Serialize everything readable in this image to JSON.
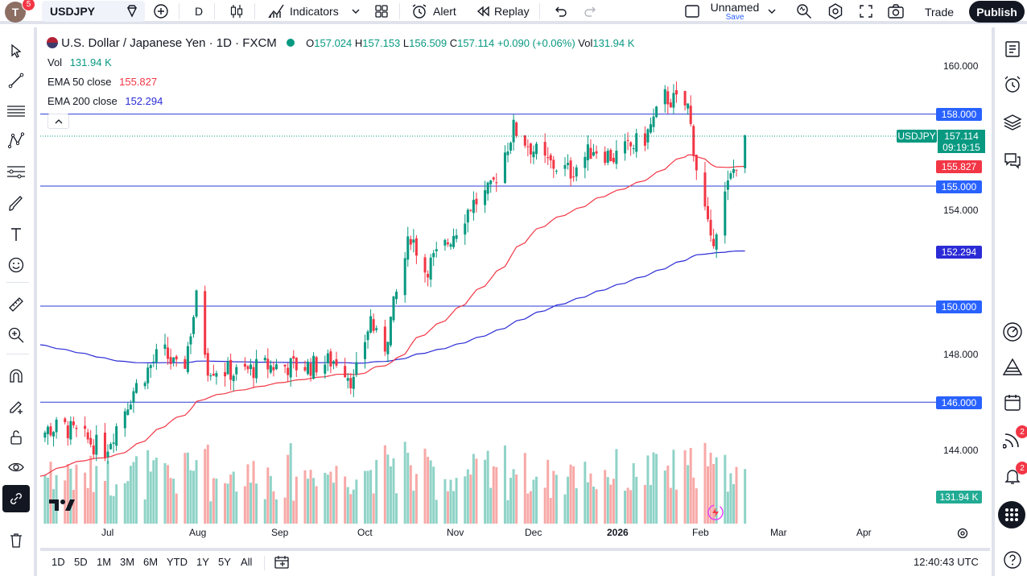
{
  "topbar": {
    "avatar_letter": "T",
    "avatar_badge": "5",
    "symbol": "USDJPY",
    "interval": "D",
    "indicators_label": "Indicators",
    "alert_label": "Alert",
    "replay_label": "Replay",
    "layout_name": "Unnamed",
    "layout_sub": "Save",
    "trade_label": "Trade",
    "publish_label": "Publish"
  },
  "legend": {
    "title": "U.S. Dollar / Japanese Yen · 1D · FXCM",
    "o_label": "O",
    "o_value": "157.024",
    "h_label": "H",
    "h_value": "157.153",
    "l_label": "L",
    "l_value": "156.509",
    "c_label": "C",
    "c_value": "157.114",
    "change": "+0.090 (+0.06%)",
    "vol_label": "Vol",
    "vol_value": "131.94 K",
    "vol_line_label": "Vol",
    "vol_line_value": "131.94 K",
    "ema50_label": "EMA 50 close",
    "ema50_value": "155.827",
    "ema200_label": "EMA 200 close",
    "ema200_value": "152.294"
  },
  "price_axis": {
    "ticks": [
      "160.000",
      "154.000",
      "148.000",
      "144.000"
    ],
    "labels": {
      "l158": "158.000",
      "symbol": "USDJPY",
      "last": "157.114",
      "countdown": "09:19:15",
      "ema50": "155.827",
      "l155": "155.000",
      "ema200": "152.294",
      "l150": "150.000",
      "l146": "146.000",
      "vol": "131.94 K"
    }
  },
  "time_axis": [
    "Jul",
    "Aug",
    "Sep",
    "Oct",
    "Nov",
    "Dec",
    "2026",
    "Feb",
    "Mar",
    "Apr"
  ],
  "bottombar": {
    "ranges": [
      "1D",
      "5D",
      "1M",
      "3M",
      "6M",
      "YTD",
      "1Y",
      "5Y",
      "All"
    ],
    "clock": "12:40:43 UTC"
  },
  "right_badges": {
    "alerts_feed": "2",
    "notifications": "2"
  },
  "colors": {
    "up": "#089981",
    "down": "#f23645",
    "ema50": "#f23645",
    "ema200": "#2b2bd6",
    "hline": "#2b3bd6"
  },
  "chart_data": {
    "type": "candlestick",
    "symbol": "USDJPY",
    "interval": "1D",
    "ylim": [
      143.0,
      161.0
    ],
    "horizontal_lines": [
      158.0,
      155.0,
      150.0,
      146.0
    ],
    "last_close": 157.114,
    "ema50_last": 155.827,
    "ema200_last": 152.294,
    "anchors": [
      {
        "date": "2025-06-01",
        "close": 144.5
      },
      {
        "date": "2025-06-15",
        "close": 145.0
      },
      {
        "date": "2025-06-30",
        "close": 144.0
      },
      {
        "date": "2025-07-10",
        "close": 146.5
      },
      {
        "date": "2025-07-20",
        "close": 148.2
      },
      {
        "date": "2025-07-27",
        "close": 147.0
      },
      {
        "date": "2025-08-01",
        "close": 150.3
      },
      {
        "date": "2025-08-05",
        "close": 147.5
      },
      {
        "date": "2025-08-15",
        "close": 147.2
      },
      {
        "date": "2025-08-25",
        "close": 147.5
      },
      {
        "date": "2025-09-10",
        "close": 147.5
      },
      {
        "date": "2025-09-20",
        "close": 147.8
      },
      {
        "date": "2025-09-25",
        "close": 146.8
      },
      {
        "date": "2025-10-01",
        "close": 149.5
      },
      {
        "date": "2025-10-05",
        "close": 147.8
      },
      {
        "date": "2025-10-10",
        "close": 150.5
      },
      {
        "date": "2025-10-15",
        "close": 153.0
      },
      {
        "date": "2025-10-20",
        "close": 151.5
      },
      {
        "date": "2025-10-27",
        "close": 152.5
      },
      {
        "date": "2025-11-05",
        "close": 154.2
      },
      {
        "date": "2025-11-12",
        "close": 154.8
      },
      {
        "date": "2025-11-20",
        "close": 157.4
      },
      {
        "date": "2025-12-01",
        "close": 156.0
      },
      {
        "date": "2025-12-10",
        "close": 155.6
      },
      {
        "date": "2025-12-18",
        "close": 156.6
      },
      {
        "date": "2025-12-25",
        "close": 156.2
      },
      {
        "date": "2026-01-05",
        "close": 157.0
      },
      {
        "date": "2026-01-12",
        "close": 158.7
      },
      {
        "date": "2026-01-20",
        "close": 158.3
      },
      {
        "date": "2026-01-23",
        "close": 155.8
      },
      {
        "date": "2026-01-26",
        "close": 154.0
      },
      {
        "date": "2026-01-28",
        "close": 152.5
      },
      {
        "date": "2026-02-02",
        "close": 154.6
      },
      {
        "date": "2026-02-09",
        "close": 157.1
      }
    ]
  }
}
